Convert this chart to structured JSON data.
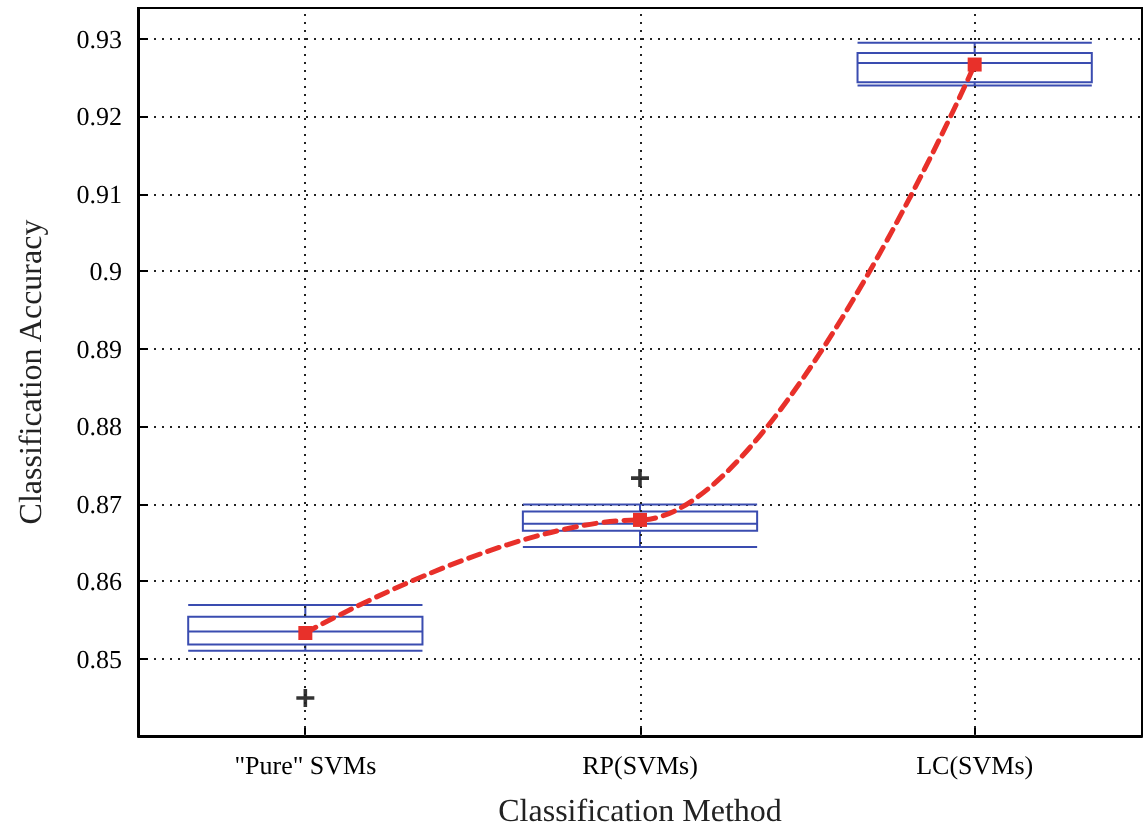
{
  "chart_data": {
    "type": "box",
    "xlabel": "Classification Method",
    "ylabel": "Classification Accuracy",
    "categories": [
      "\"Pure\" SVMs",
      "RP(SVMs)",
      "LC(SVMs)"
    ],
    "ylim": [
      0.84,
      0.934
    ],
    "yticks": [
      0.85,
      0.86,
      0.87,
      0.88,
      0.89,
      0.9,
      0.91,
      0.92,
      0.93
    ],
    "grid": true,
    "marker": "square",
    "line_style": "dashed",
    "series": [
      {
        "color": "#3a4cb0",
        "boxes": [
          {
            "low": 0.851,
            "q1": 0.8518,
            "median": 0.8535,
            "q3": 0.8554,
            "high": 0.8569,
            "outliers": [
              0.8449
            ]
          },
          {
            "low": 0.8644,
            "q1": 0.8665,
            "median": 0.8674,
            "q3": 0.869,
            "high": 0.8699,
            "outliers": [
              0.8733
            ]
          },
          {
            "low": 0.924,
            "q1": 0.9244,
            "median": 0.9269,
            "q3": 0.9282,
            "high": 0.9295
          }
        ]
      },
      {
        "type": "line",
        "color": "#e8302a",
        "values": [
          0.8533,
          0.8679,
          0.9267
        ]
      }
    ]
  }
}
